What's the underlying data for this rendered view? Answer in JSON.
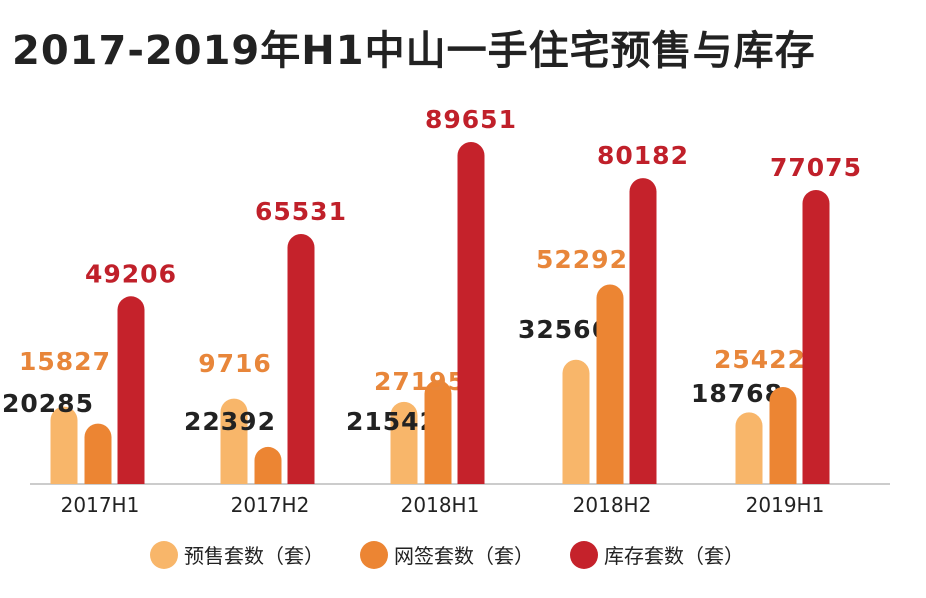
{
  "chart_data": {
    "type": "bar",
    "title": "2017-2019年H1中山一手住宅预售与库存",
    "categories": [
      "2017H1",
      "2017H2",
      "2018H1",
      "2018H2",
      "2019H1"
    ],
    "series": [
      {
        "name": "预售套数（套）",
        "color": "#F8B66A",
        "label_color": "#222222",
        "values": [
          20285,
          22392,
          21542,
          32566,
          18768
        ]
      },
      {
        "name": "网签套数（套）",
        "color": "#EC8533",
        "label_color": "#E8863A",
        "values": [
          15827,
          9716,
          27195,
          52292,
          25422
        ]
      },
      {
        "name": "库存套数（套）",
        "color": "#C5222B",
        "label_color": "#C0202A",
        "values": [
          49206,
          65531,
          89651,
          80182,
          77075
        ]
      }
    ],
    "xlabel": "",
    "ylabel": "",
    "ylim": [
      0,
      90000
    ],
    "grid": false,
    "legend": "bottom"
  }
}
